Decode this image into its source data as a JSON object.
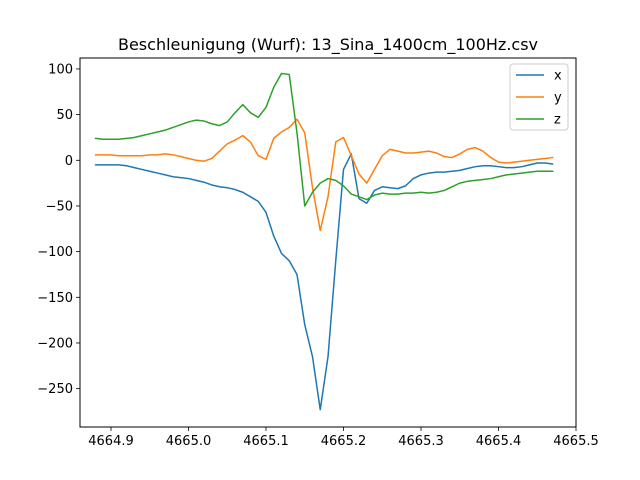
{
  "chart_data": {
    "type": "line",
    "title": "Beschleunigung (Wurf): 13_Sina_1400cm_100Hz.csv",
    "xlabel": "",
    "ylabel": "",
    "xlim": [
      4664.86,
      4665.5
    ],
    "ylim": [
      -292,
      112
    ],
    "xticks": [
      4664.9,
      4665.0,
      4665.1,
      4665.2,
      4665.3,
      4665.4,
      4665.5
    ],
    "xtick_labels": [
      "4664.9",
      "4665.0",
      "4665.1",
      "4665.2",
      "4665.3",
      "4665.4",
      "4665.5"
    ],
    "yticks": [
      100,
      50,
      0,
      -50,
      -100,
      -150,
      -200,
      -250
    ],
    "ytick_labels": [
      "100",
      "50",
      "0",
      "−50",
      "−100",
      "−150",
      "−200",
      "−250"
    ],
    "grid": false,
    "legend_position": "top-right",
    "x": [
      4664.88,
      4664.89,
      4664.9,
      4664.91,
      4664.92,
      4664.93,
      4664.94,
      4664.95,
      4664.96,
      4664.97,
      4664.98,
      4664.99,
      4665.0,
      4665.01,
      4665.02,
      4665.03,
      4665.04,
      4665.05,
      4665.06,
      4665.07,
      4665.08,
      4665.09,
      4665.1,
      4665.11,
      4665.12,
      4665.13,
      4665.14,
      4665.15,
      4665.16,
      4665.17,
      4665.18,
      4665.19,
      4665.2,
      4665.21,
      4665.22,
      4665.23,
      4665.24,
      4665.25,
      4665.26,
      4665.27,
      4665.28,
      4665.29,
      4665.3,
      4665.31,
      4665.32,
      4665.33,
      4665.34,
      4665.35,
      4665.36,
      4665.37,
      4665.38,
      4665.39,
      4665.4,
      4665.41,
      4665.42,
      4665.43,
      4665.44,
      4665.45,
      4665.46,
      4665.47
    ],
    "series": [
      {
        "name": "x",
        "color": "#1f77b4",
        "values": [
          -5,
          -5,
          -5,
          -5,
          -6,
          -8,
          -10,
          -12,
          -14,
          -16,
          -18,
          -19,
          -20,
          -22,
          -24,
          -27,
          -29,
          -30,
          -32,
          -35,
          -40,
          -45,
          -57,
          -83,
          -102,
          -110,
          -125,
          -180,
          -215,
          -273,
          -215,
          -110,
          -10,
          7,
          -42,
          -47,
          -33,
          -29,
          -30,
          -31,
          -28,
          -20,
          -16,
          -14,
          -13,
          -13,
          -12,
          -11,
          -9,
          -7,
          -6,
          -6,
          -7,
          -8,
          -8,
          -7,
          -5,
          -3,
          -3,
          -4
        ]
      },
      {
        "name": "y",
        "color": "#ff7f0e",
        "values": [
          6,
          6,
          6,
          5,
          5,
          5,
          5,
          6,
          6,
          7,
          6,
          4,
          2,
          0,
          -1,
          2,
          10,
          18,
          22,
          27,
          20,
          5,
          1,
          24,
          31,
          36,
          45,
          30,
          -30,
          -77,
          -40,
          20,
          25,
          5,
          -15,
          -25,
          -10,
          5,
          12,
          10,
          8,
          8,
          9,
          10,
          8,
          4,
          3,
          7,
          12,
          14,
          10,
          3,
          -2,
          -3,
          -2,
          -1,
          0,
          1,
          2,
          3
        ]
      },
      {
        "name": "z",
        "color": "#2ca02c",
        "values": [
          24,
          23,
          23,
          23,
          24,
          25,
          27,
          29,
          31,
          33,
          36,
          39,
          42,
          44,
          43,
          40,
          38,
          42,
          52,
          61,
          52,
          47,
          58,
          80,
          95,
          94,
          30,
          -50,
          -35,
          -25,
          -20,
          -22,
          -28,
          -37,
          -40,
          -43,
          -38,
          -36,
          -37,
          -37,
          -36,
          -36,
          -35,
          -36,
          -35,
          -33,
          -29,
          -25,
          -23,
          -22,
          -21,
          -20,
          -18,
          -16,
          -15,
          -14,
          -13,
          -12,
          -12,
          -12
        ]
      }
    ]
  }
}
